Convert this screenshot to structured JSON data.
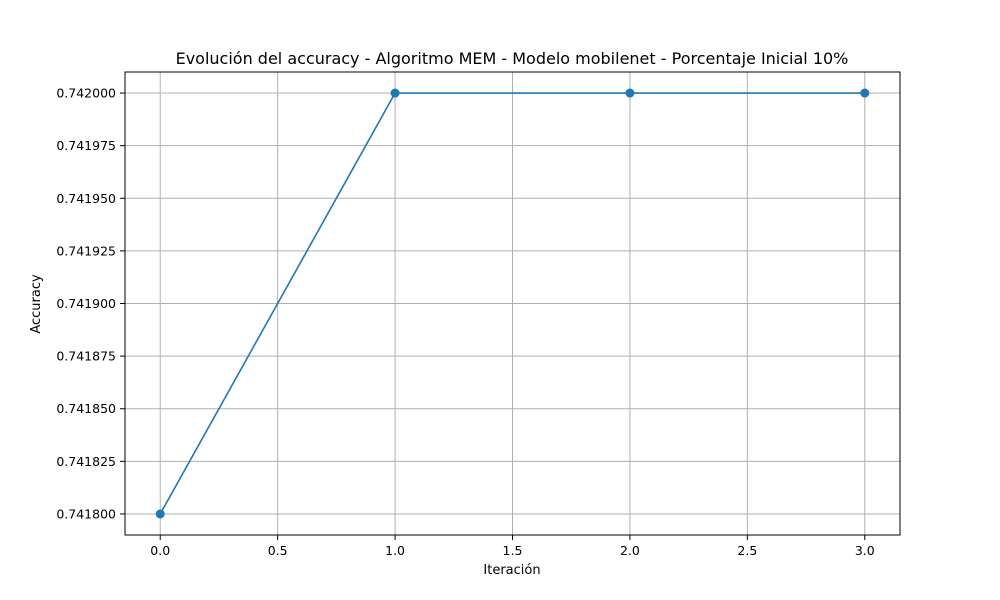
{
  "chart_data": {
    "type": "line",
    "title": "Evolución del accuracy - Algoritmo MEM - Modelo mobilenet - Porcentaje Inicial 10%",
    "xlabel": "Iteración",
    "ylabel": "Accuracy",
    "x": [
      0,
      1,
      2,
      3
    ],
    "series": [
      {
        "values": [
          0.7418,
          0.742,
          0.742,
          0.742
        ],
        "color": "#1f77b4",
        "marker": "circle"
      }
    ],
    "xlim": [
      -0.15,
      3.15
    ],
    "ylim": [
      0.74179,
      0.74201
    ],
    "xticks": [
      0.0,
      0.5,
      1.0,
      1.5,
      2.0,
      2.5,
      3.0
    ],
    "xtick_labels": [
      "0.0",
      "0.5",
      "1.0",
      "1.5",
      "2.0",
      "2.5",
      "3.0"
    ],
    "yticks": [
      0.7418,
      0.741825,
      0.74185,
      0.741875,
      0.7419,
      0.741925,
      0.74195,
      0.741975,
      0.742
    ],
    "ytick_labels": [
      "0.741800",
      "0.741825",
      "0.741850",
      "0.741875",
      "0.741900",
      "0.741925",
      "0.741950",
      "0.741975",
      "0.742000"
    ],
    "grid": true,
    "grid_color": "#b0b0b0"
  }
}
